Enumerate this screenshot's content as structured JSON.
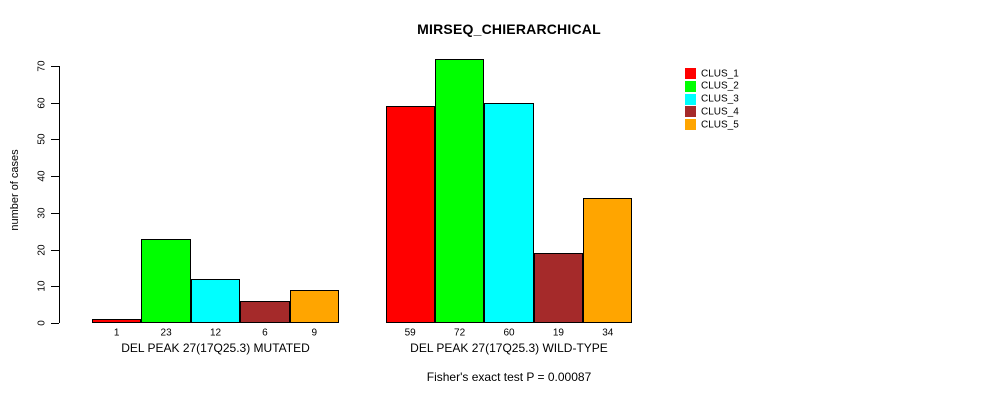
{
  "chart_data": {
    "type": "bar",
    "title": "MIRSEQ_CHIERARCHICAL",
    "ylabel": "number of cases",
    "xlabel": "",
    "ylim": [
      0,
      70
    ],
    "yticks": [
      0,
      10,
      20,
      30,
      40,
      50,
      60,
      70
    ],
    "grid": false,
    "bar_value_labels": true,
    "categories": [
      "DEL PEAK 27(17Q25.3) MUTATED",
      "DEL PEAK 27(17Q25.3) WILD-TYPE"
    ],
    "series": [
      {
        "name": "CLUS_1",
        "color": "#ff0000",
        "values": [
          1,
          59
        ]
      },
      {
        "name": "CLUS_2",
        "color": "#00ff00",
        "values": [
          23,
          72
        ]
      },
      {
        "name": "CLUS_3",
        "color": "#00ffff",
        "values": [
          12,
          60
        ]
      },
      {
        "name": "CLUS_4",
        "color": "#a52a2a",
        "values": [
          6,
          19
        ]
      },
      {
        "name": "CLUS_5",
        "color": "#ffa500",
        "values": [
          9,
          34
        ]
      }
    ],
    "legend_position": "top-right",
    "annotation": "Fisher's exact test P = 0.00087"
  }
}
